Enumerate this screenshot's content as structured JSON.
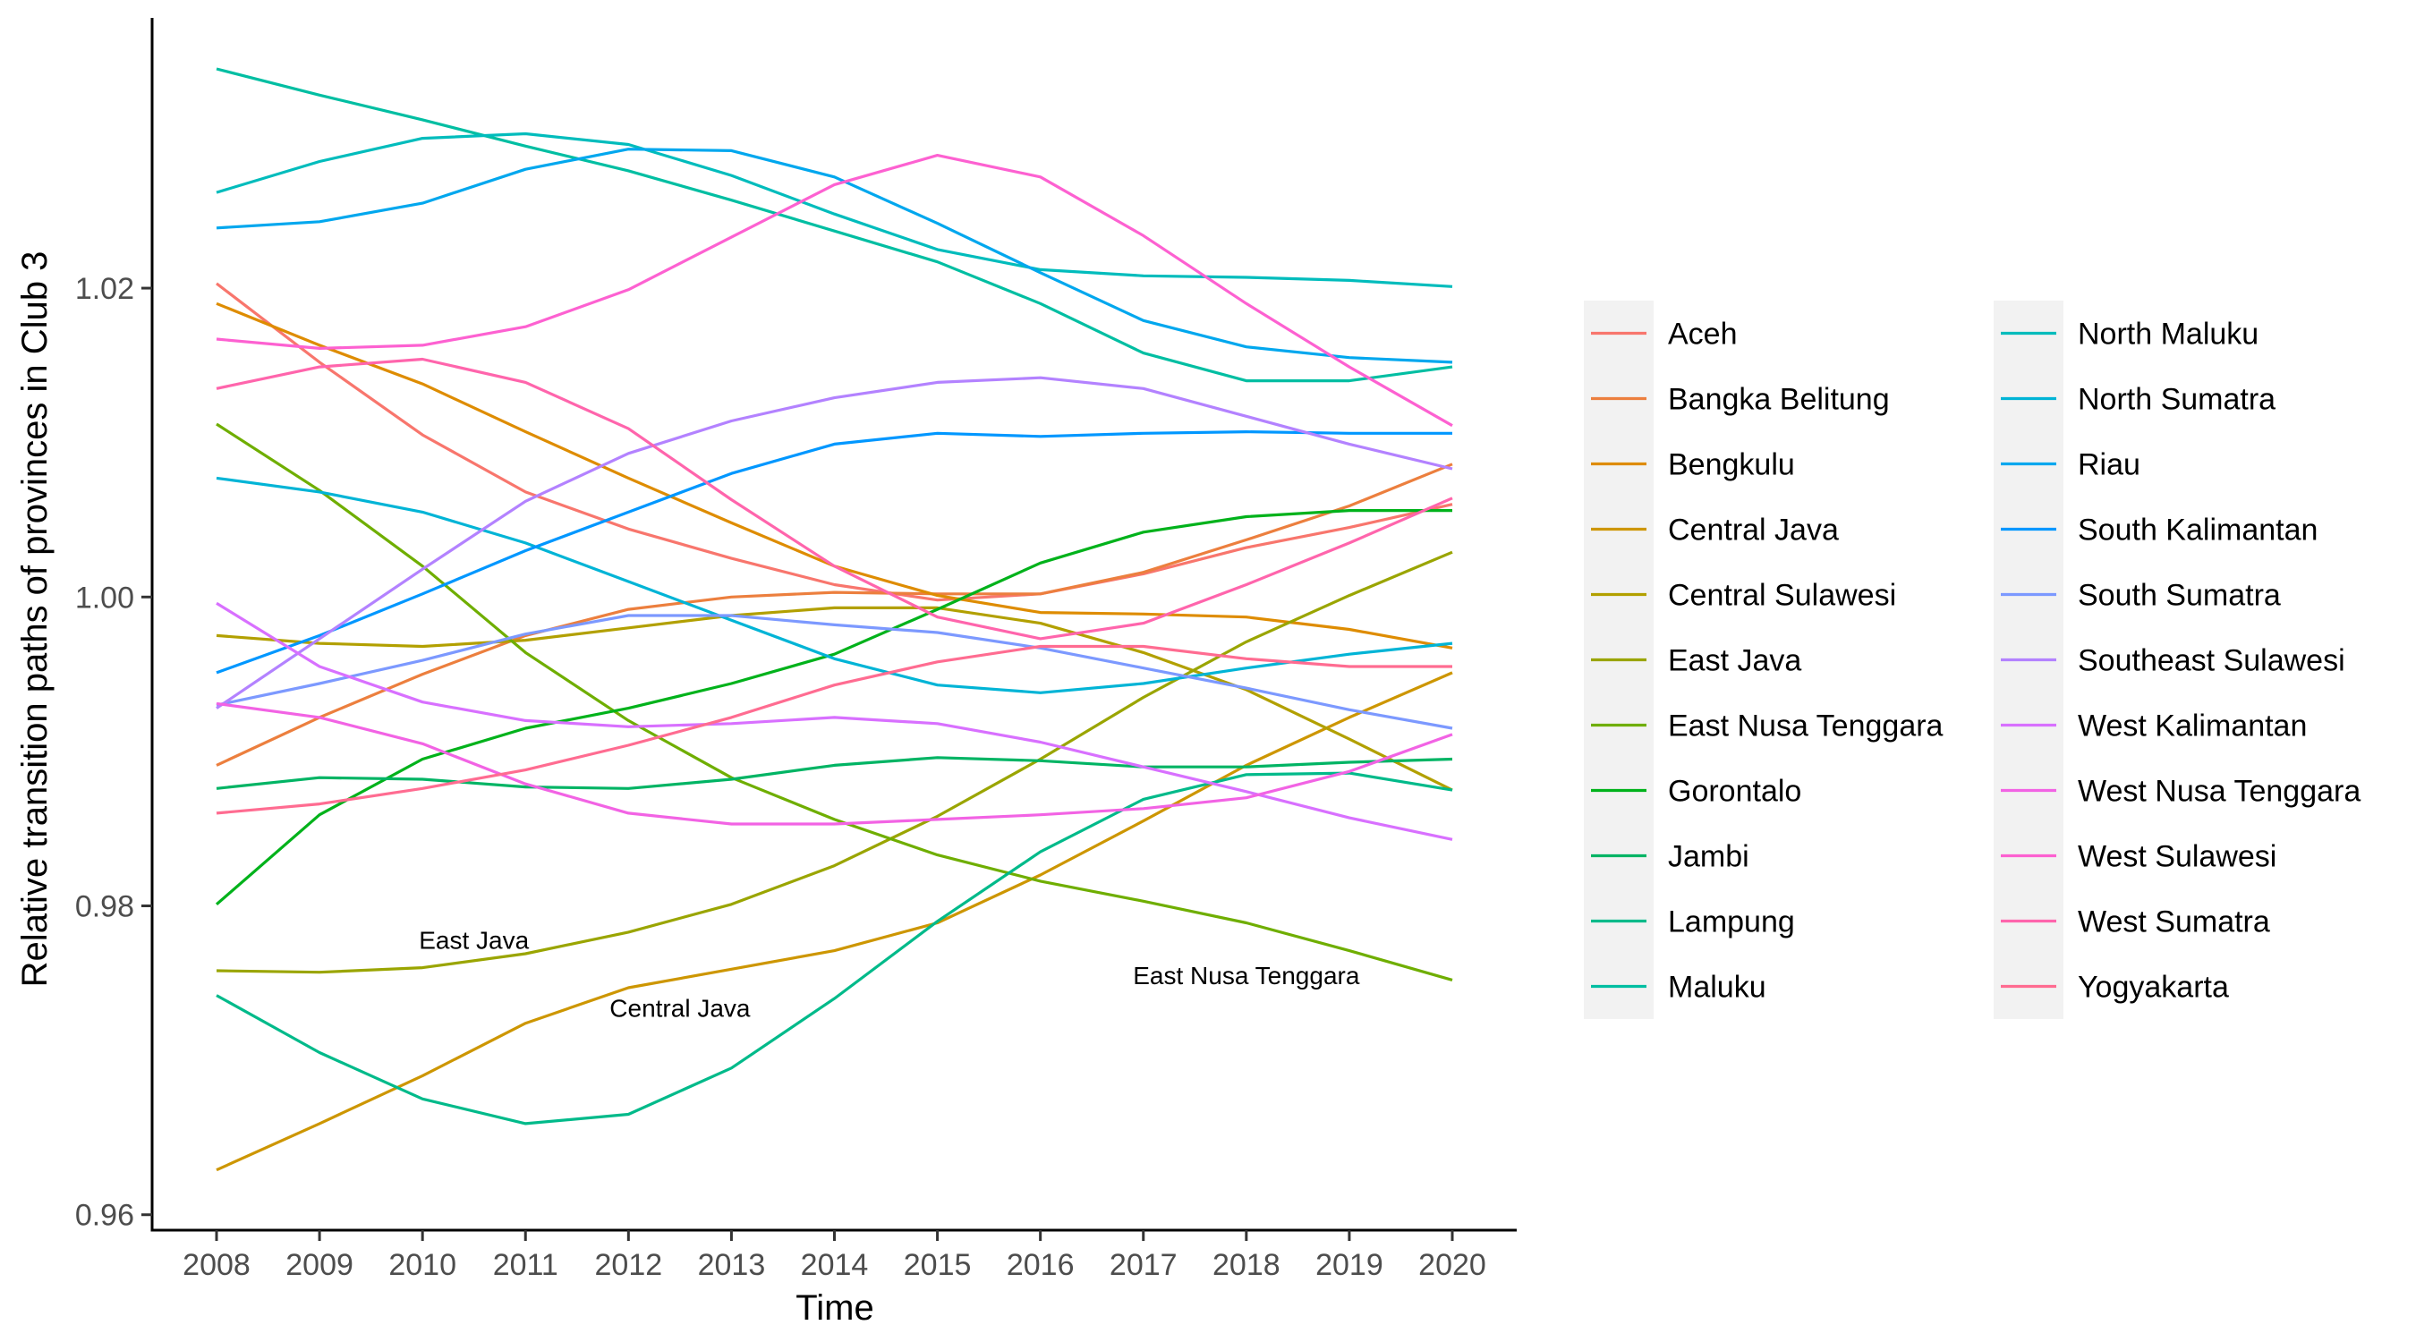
{
  "chart_data": {
    "type": "line",
    "title": "",
    "xlabel": "Time",
    "ylabel": "Relative transition paths of provinces in Club 3",
    "x": [
      2008,
      2009,
      2010,
      2011,
      2012,
      2013,
      2014,
      2015,
      2016,
      2017,
      2018,
      2019,
      2020
    ],
    "x_ticks": [
      "2008",
      "2009",
      "2010",
      "2011",
      "2012",
      "2013",
      "2014",
      "2015",
      "2016",
      "2017",
      "2018",
      "2019",
      "2020"
    ],
    "ylim": [
      0.959,
      1.0375
    ],
    "y_ticks": [
      0.96,
      0.98,
      1.0,
      1.02
    ],
    "y_tick_labels": [
      "0.96",
      "0.98",
      "1.00",
      "1.02"
    ],
    "grid": false,
    "legend_position": "right",
    "series": [
      {
        "name": "Aceh",
        "color": "#F8766D",
        "values": [
          1.0203,
          1.0152,
          1.0105,
          1.0068,
          1.0044,
          1.0025,
          1.0008,
          0.9998,
          1.0002,
          1.0015,
          1.0032,
          1.0045,
          1.006
        ]
      },
      {
        "name": "Bangka Belitung",
        "color": "#EC7F3E",
        "values": [
          0.9891,
          0.9922,
          0.995,
          0.9975,
          0.9992,
          1.0,
          1.0003,
          1.0002,
          1.0002,
          1.0016,
          1.0037,
          1.0059,
          1.0086
        ]
      },
      {
        "name": "Bengkulu",
        "color": "#DE8C00",
        "values": [
          1.019,
          1.0163,
          1.0138,
          1.0107,
          1.0077,
          1.0048,
          1.002,
          1.0001,
          0.999,
          0.9989,
          0.9987,
          0.9979,
          0.9967
        ]
      },
      {
        "name": "Central Java",
        "color": "#CD9600",
        "values": [
          0.9629,
          0.9659,
          0.969,
          0.9724,
          0.9747,
          0.9759,
          0.9771,
          0.9789,
          0.982,
          0.9855,
          0.9891,
          0.9922,
          0.9951
        ]
      },
      {
        "name": "Central Sulawesi",
        "color": "#B2A000",
        "values": [
          0.9975,
          0.997,
          0.9968,
          0.9972,
          0.998,
          0.9988,
          0.9993,
          0.9993,
          0.9983,
          0.9964,
          0.994,
          0.9908,
          0.9875
        ]
      },
      {
        "name": "East Java",
        "color": "#9AA500",
        "values": [
          0.9758,
          0.9757,
          0.976,
          0.9769,
          0.9783,
          0.9801,
          0.9826,
          0.9858,
          0.9895,
          0.9935,
          0.9971,
          1.0001,
          1.0029
        ]
      },
      {
        "name": "East Nusa Tenggara",
        "color": "#6FAE00",
        "values": [
          1.0112,
          1.0069,
          1.002,
          0.9964,
          0.992,
          0.9883,
          0.9856,
          0.9833,
          0.9816,
          0.9803,
          0.9789,
          0.9771,
          0.9752
        ]
      },
      {
        "name": "Gorontalo",
        "color": "#00B21B",
        "values": [
          0.9801,
          0.9859,
          0.9895,
          0.9915,
          0.9928,
          0.9944,
          0.9963,
          0.9992,
          1.0022,
          1.0042,
          1.0052,
          1.0056,
          1.0056
        ]
      },
      {
        "name": "Jambi",
        "color": "#00B464",
        "values": [
          0.9876,
          0.9883,
          0.9882,
          0.9877,
          0.9876,
          0.9882,
          0.9891,
          0.9896,
          0.9894,
          0.989,
          0.989,
          0.9893,
          0.9895
        ]
      },
      {
        "name": "Lampung",
        "color": "#00BA8A",
        "values": [
          0.9742,
          0.9705,
          0.9675,
          0.9659,
          0.9665,
          0.9695,
          0.974,
          0.979,
          0.9835,
          0.9869,
          0.9885,
          0.9886,
          0.9875
        ]
      },
      {
        "name": "Maluku",
        "color": "#00BEA2",
        "values": [
          1.0342,
          1.0325,
          1.0309,
          1.0292,
          1.0276,
          1.0257,
          1.0237,
          1.0217,
          1.019,
          1.0158,
          1.014,
          1.014,
          1.0149
        ]
      },
      {
        "name": "North Maluku",
        "color": "#00BCBC",
        "values": [
          1.0262,
          1.0282,
          1.0297,
          1.03,
          1.0293,
          1.0273,
          1.0248,
          1.0225,
          1.0212,
          1.0208,
          1.0207,
          1.0205,
          1.0201
        ]
      },
      {
        "name": "North Sumatra",
        "color": "#00B4D6",
        "values": [
          1.0077,
          1.0068,
          1.0055,
          1.0035,
          1.001,
          0.9985,
          0.996,
          0.9943,
          0.9938,
          0.9944,
          0.9954,
          0.9963,
          0.997
        ]
      },
      {
        "name": "Riau",
        "color": "#00A7EE",
        "values": [
          1.0239,
          1.0243,
          1.0255,
          1.0277,
          1.029,
          1.0289,
          1.0272,
          1.0242,
          1.021,
          1.0179,
          1.0162,
          1.0155,
          1.0152
        ]
      },
      {
        "name": "South Kalimantan",
        "color": "#0097FF",
        "values": [
          0.9951,
          0.9975,
          1.0002,
          1.003,
          1.0055,
          1.008,
          1.0099,
          1.0106,
          1.0104,
          1.0106,
          1.0107,
          1.0106,
          1.0106
        ]
      },
      {
        "name": "South Sumatra",
        "color": "#7C99FF",
        "values": [
          0.993,
          0.9944,
          0.9959,
          0.9976,
          0.9988,
          0.9988,
          0.9982,
          0.9977,
          0.9967,
          0.9954,
          0.9941,
          0.9927,
          0.9915
        ]
      },
      {
        "name": "Southeast Sulawesi",
        "color": "#B382FF",
        "values": [
          0.9928,
          0.9973,
          1.0018,
          1.0062,
          1.0093,
          1.0114,
          1.0129,
          1.0139,
          1.0142,
          1.0135,
          1.0117,
          1.0099,
          1.0083
        ]
      },
      {
        "name": "West Kalimantan",
        "color": "#D870FF",
        "values": [
          0.9996,
          0.9955,
          0.9932,
          0.992,
          0.9916,
          0.9918,
          0.9922,
          0.9918,
          0.9906,
          0.989,
          0.9874,
          0.9857,
          0.9843
        ]
      },
      {
        "name": "West Nusa Tenggara",
        "color": "#F263E4",
        "values": [
          0.9931,
          0.9922,
          0.9905,
          0.9879,
          0.986,
          0.9853,
          0.9853,
          0.9856,
          0.9859,
          0.9863,
          0.987,
          0.9887,
          0.9911
        ]
      },
      {
        "name": "West Sulawesi",
        "color": "#FD61D1",
        "values": [
          1.0167,
          1.0161,
          1.0163,
          1.0175,
          1.0199,
          1.0233,
          1.0267,
          1.0286,
          1.0272,
          1.0234,
          1.019,
          1.0149,
          1.0111
        ]
      },
      {
        "name": "West Sumatra",
        "color": "#FF65AC",
        "values": [
          1.0135,
          1.0149,
          1.0154,
          1.0139,
          1.0109,
          1.0063,
          1.002,
          0.9987,
          0.9973,
          0.9983,
          1.0008,
          1.0035,
          1.0064
        ]
      },
      {
        "name": "Yogyakarta",
        "color": "#FF6C91",
        "values": [
          0.986,
          0.9866,
          0.9876,
          0.9888,
          0.9904,
          0.9922,
          0.9943,
          0.9958,
          0.9968,
          0.9968,
          0.996,
          0.9955,
          0.9955
        ]
      }
    ],
    "annotations": [
      {
        "text": "East Java",
        "x": 2010.5,
        "y": 0.9778
      },
      {
        "text": "Central Java",
        "x": 2012.5,
        "y": 0.9734
      },
      {
        "text": "East Nusa Tenggara",
        "x": 2018.0,
        "y": 0.9755
      }
    ]
  }
}
